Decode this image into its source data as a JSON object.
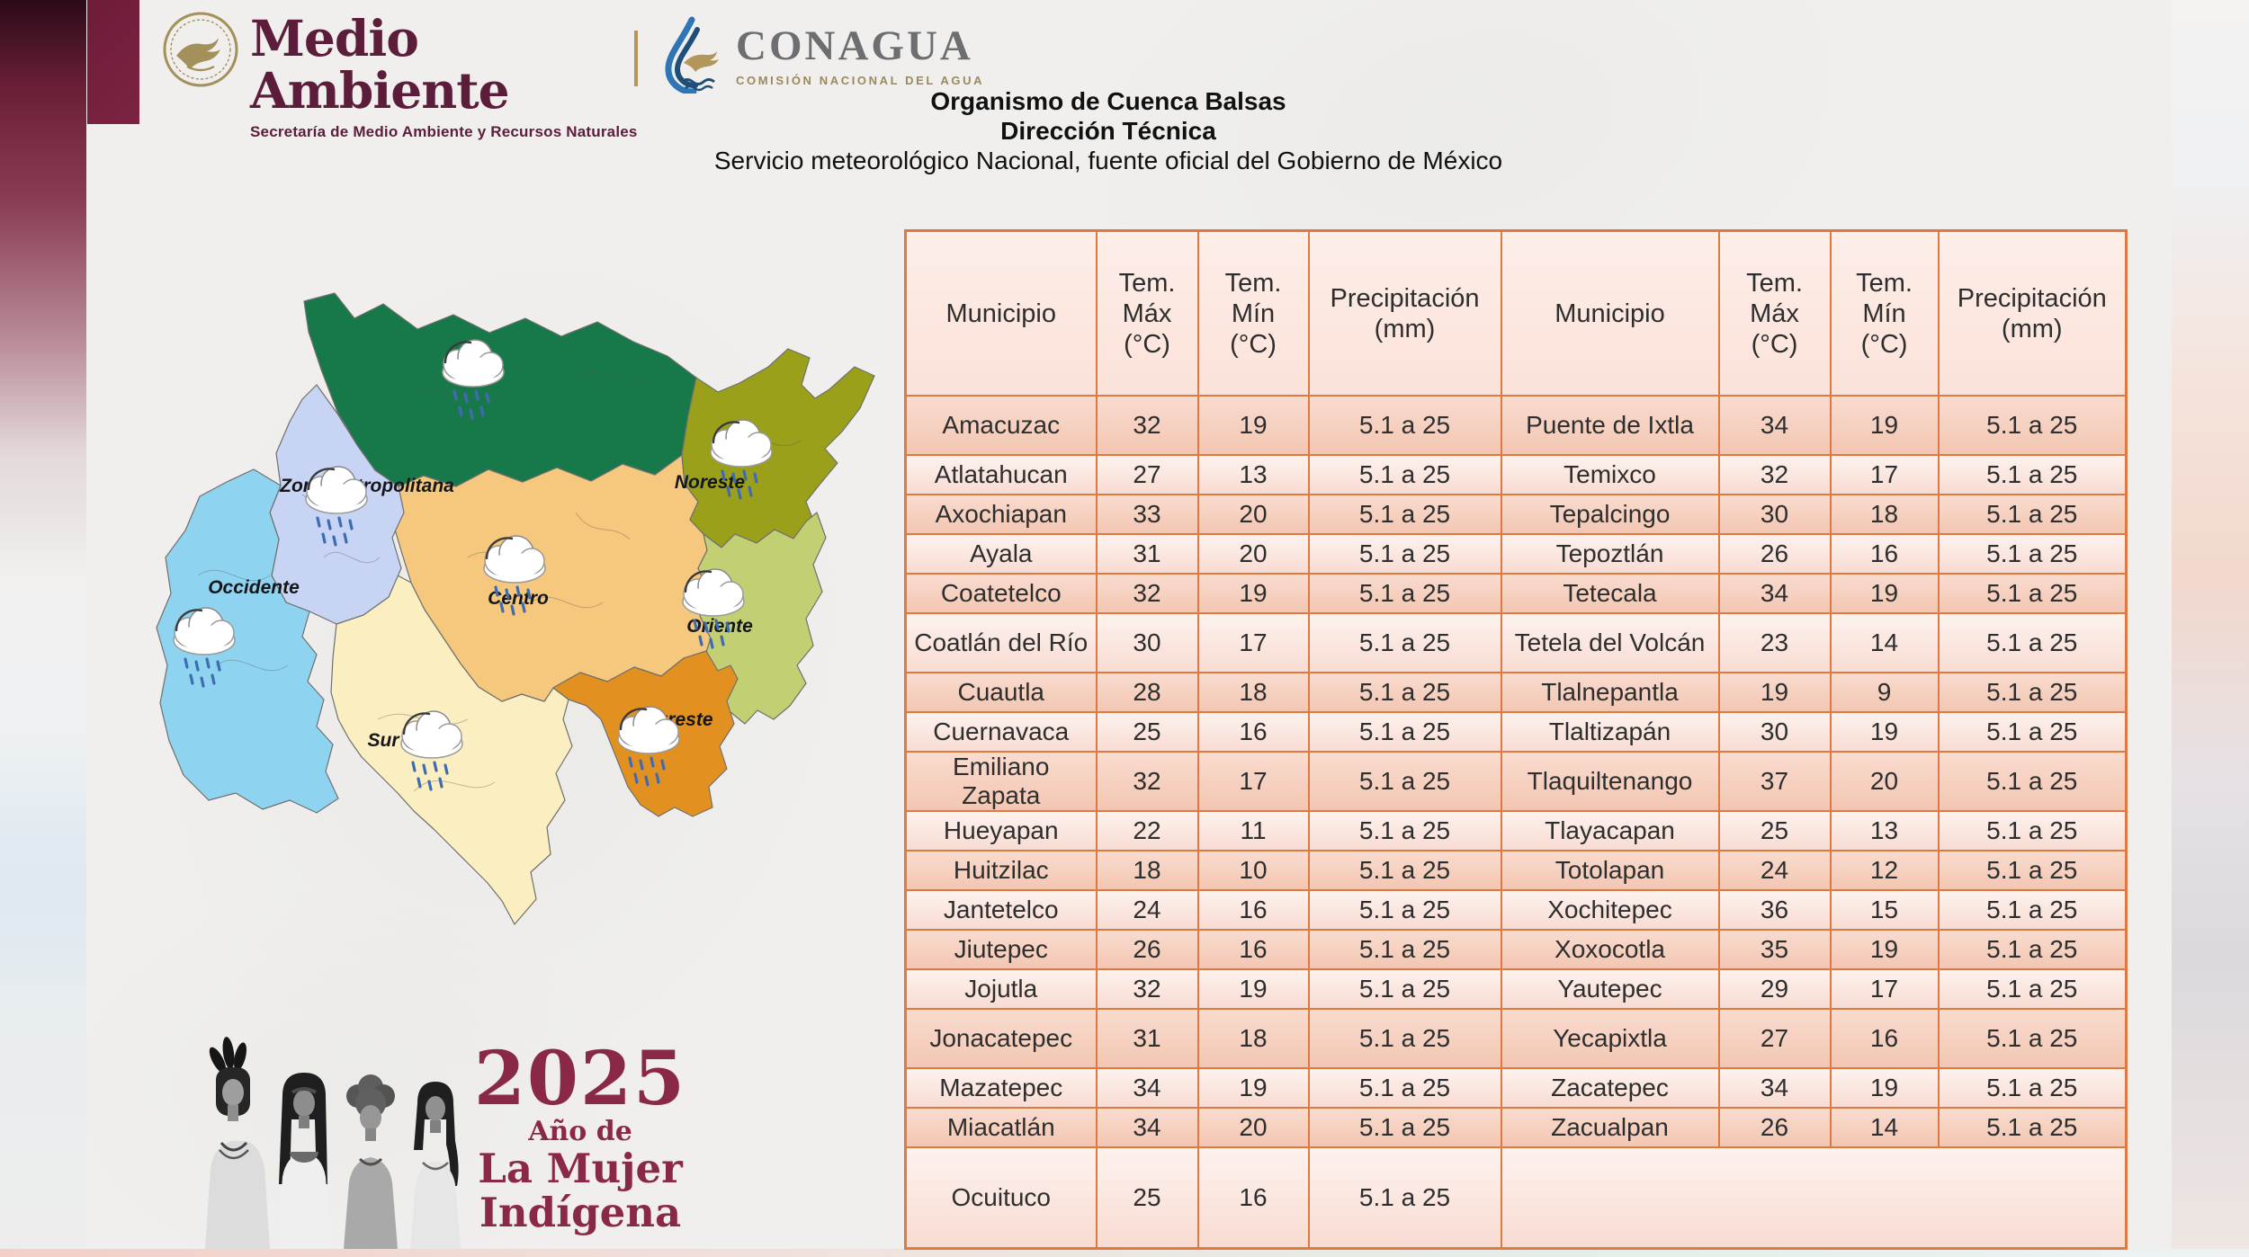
{
  "header": {
    "semarnat": {
      "title": "Medio Ambiente",
      "subtitle": "Secretaría de Medio Ambiente y Recursos Naturales"
    },
    "conagua": {
      "title": "CONAGUA",
      "subtitle": "COMISIÓN NACIONAL DEL AGUA"
    }
  },
  "title_block": {
    "line1": "Organismo de Cuenca Balsas",
    "line2": "Dirección Técnica",
    "line3": "Servicio meteorológico Nacional, fuente oficial del Gobierno de México"
  },
  "map": {
    "labels": {
      "zona_metropolitana": "Zona Metropolitana",
      "noreste": "Noreste",
      "occidente": "Occidente",
      "centro": "Centro",
      "oriente": "Oriente",
      "sur": "Sur",
      "sureste": "Sureste"
    },
    "region_colors": {
      "norte": "#17794a",
      "zona_metropolitana": "#c8d4f4",
      "occidente": "#8ed4f0",
      "centro": "#f6c87d",
      "noreste": "#9aa019",
      "oriente": "#c2cf72",
      "sur": "#fbeec1",
      "sureste": "#e2901f"
    },
    "weather_icon": "rain-cloud"
  },
  "badge_2025": {
    "year": "2025",
    "line1": "Año de",
    "line2": "La Mujer",
    "line3": "Indígena"
  },
  "table": {
    "headers": [
      "Municipio",
      "Tem.\nMáx\n(°C)",
      "Tem.\nMín\n(°C)",
      "Precipitación\n(mm)",
      "Municipio",
      "Tem.\nMáx\n(°C)",
      "Tem.\nMín\n(°C)",
      "Precipitación\n(mm)"
    ],
    "rows": [
      [
        "Amacuzac",
        "32",
        "19",
        "5.1 a 25",
        "Puente de Ixtla",
        "34",
        "19",
        "5.1 a 25"
      ],
      [
        "Atlatahucan",
        "27",
        "13",
        "5.1 a 25",
        "Temixco",
        "32",
        "17",
        "5.1 a 25"
      ],
      [
        "Axochiapan",
        "33",
        "20",
        "5.1 a 25",
        "Tepalcingo",
        "30",
        "18",
        "5.1 a 25"
      ],
      [
        "Ayala",
        "31",
        "20",
        "5.1 a 25",
        "Tepoztlán",
        "26",
        "16",
        "5.1 a 25"
      ],
      [
        "Coatetelco",
        "32",
        "19",
        "5.1 a 25",
        "Tetecala",
        "34",
        "19",
        "5.1 a 25"
      ],
      [
        "Coatlán del Río",
        "30",
        "17",
        "5.1 a 25",
        "Tetela del Volcán",
        "23",
        "14",
        "5.1 a 25"
      ],
      [
        "Cuautla",
        "28",
        "18",
        "5.1 a 25",
        "Tlalnepantla",
        "19",
        "9",
        "5.1 a 25"
      ],
      [
        "Cuernavaca",
        "25",
        "16",
        "5.1 a 25",
        "Tlaltizapán",
        "30",
        "19",
        "5.1 a 25"
      ],
      [
        "Emiliano Zapata",
        "32",
        "17",
        "5.1 a 25",
        "Tlaquiltenango",
        "37",
        "20",
        "5.1 a 25"
      ],
      [
        "Hueyapan",
        "22",
        "11",
        "5.1 a 25",
        "Tlayacapan",
        "25",
        "13",
        "5.1 a 25"
      ],
      [
        "Huitzilac",
        "18",
        "10",
        "5.1 a 25",
        "Totolapan",
        "24",
        "12",
        "5.1 a 25"
      ],
      [
        "Jantetelco",
        "24",
        "16",
        "5.1 a 25",
        "Xochitepec",
        "36",
        "15",
        "5.1 a 25"
      ],
      [
        "Jiutepec",
        "26",
        "16",
        "5.1 a 25",
        "Xoxocotla",
        "35",
        "19",
        "5.1 a 25"
      ],
      [
        "Jojutla",
        "32",
        "19",
        "5.1 a 25",
        "Yautepec",
        "29",
        "17",
        "5.1 a 25"
      ],
      [
        "Jonacatepec",
        "31",
        "18",
        "5.1 a 25",
        "Yecapixtla",
        "27",
        "16",
        "5.1 a 25"
      ],
      [
        "Mazatepec",
        "34",
        "19",
        "5.1 a 25",
        "Zacatepec",
        "34",
        "19",
        "5.1 a 25"
      ],
      [
        "Miacatlán",
        "34",
        "20",
        "5.1 a 25",
        "Zacualpan",
        "26",
        "14",
        "5.1 a 25"
      ],
      [
        "Ocuituco",
        "25",
        "16",
        "5.1 a 25",
        "",
        "",
        "",
        ""
      ]
    ]
  },
  "colors": {
    "brand_maroon": "#5c1d3a",
    "badge_maroon": "#8a2946",
    "table_border": "#dd7a42",
    "table_row_dark": "#f3c6b2",
    "table_row_light": "#fdf2ee",
    "gold": "#b2965a"
  }
}
